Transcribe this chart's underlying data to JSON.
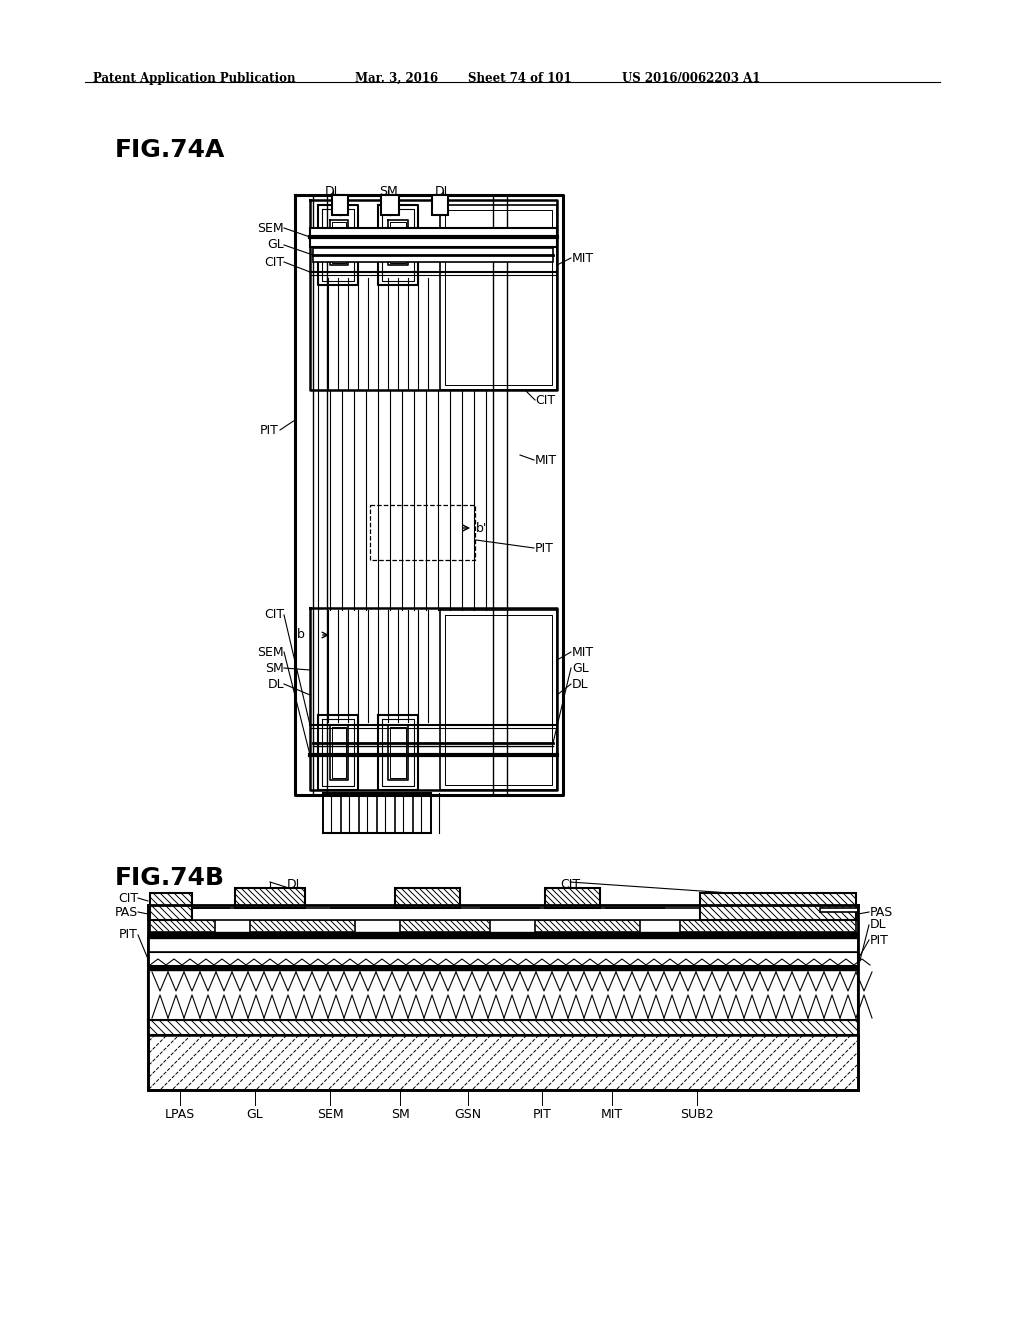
{
  "bg_color": "#ffffff",
  "line_color": "#000000",
  "header_text": "Patent Application Publication",
  "header_date": "Mar. 3, 2016",
  "header_sheet": "Sheet 74 of 101",
  "header_patent": "US 2016/0062203 A1",
  "fig74a_label": "FIG.74A",
  "fig74b_label": "FIG.74B",
  "bottom_labels": [
    "LPAS",
    "GL",
    "SEM",
    "SM",
    "GSN",
    "PIT",
    "MIT",
    "SUB2"
  ]
}
